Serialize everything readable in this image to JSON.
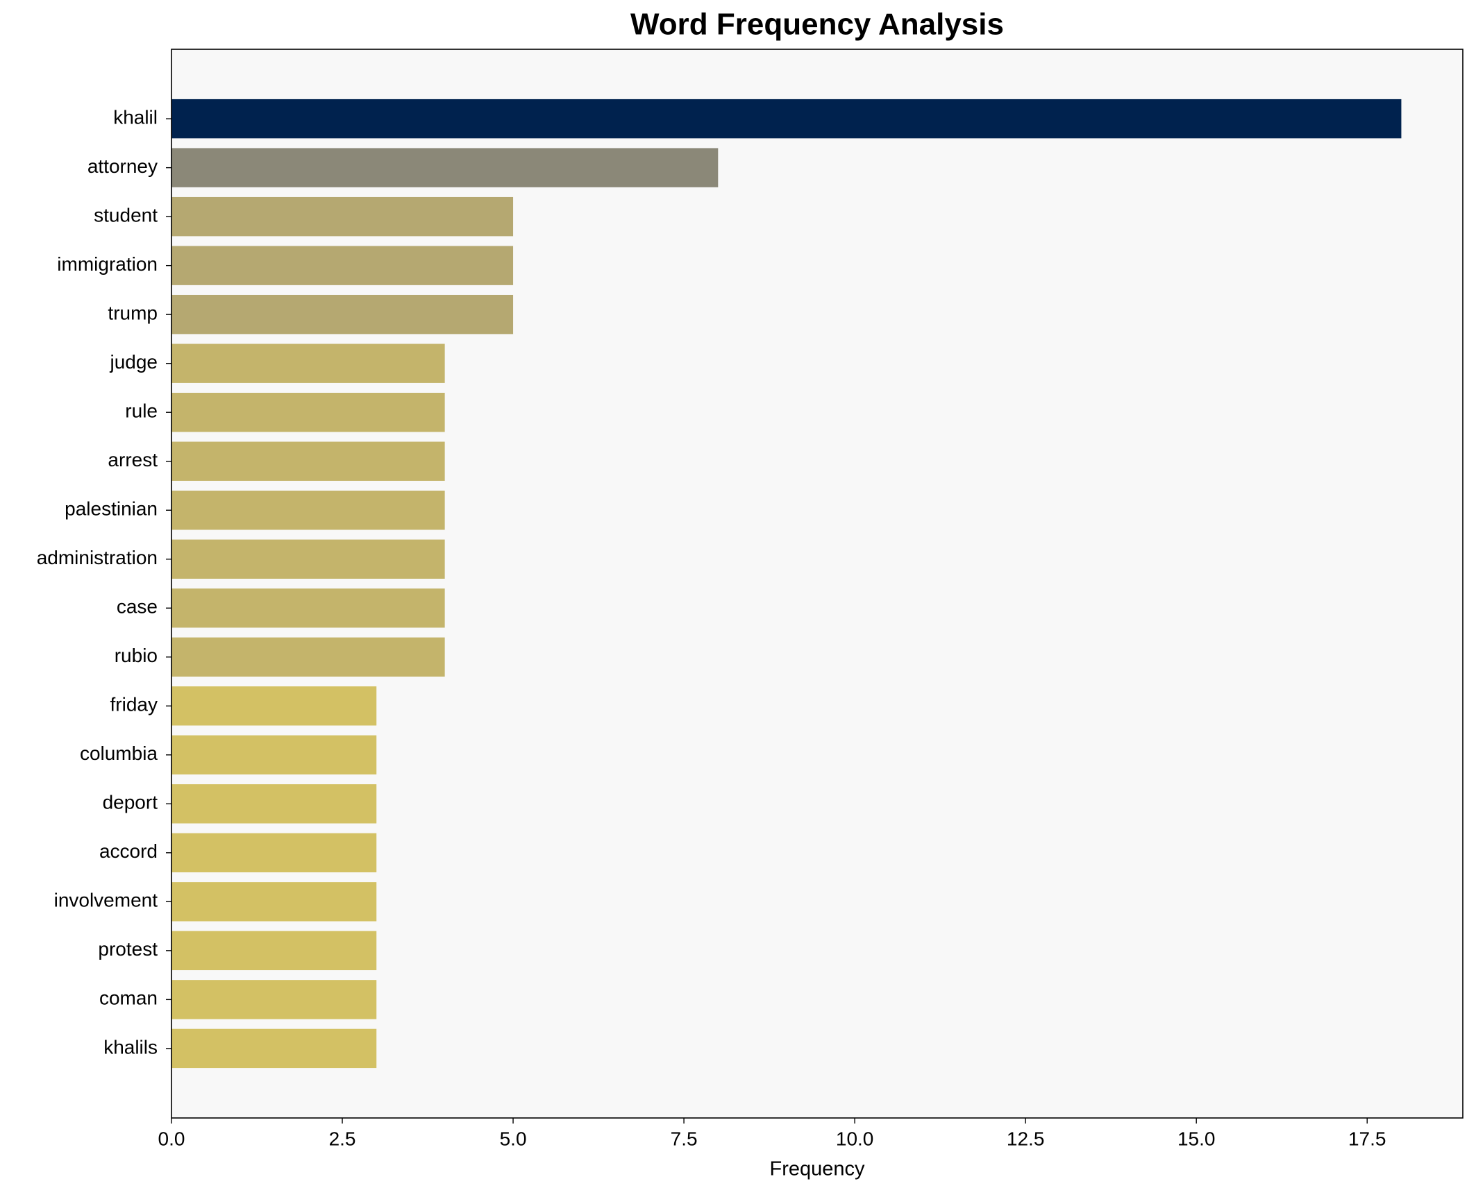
{
  "chart_data": {
    "type": "barh",
    "title": "Word Frequency Analysis",
    "x_label": "Frequency",
    "categories": [
      "khalil",
      "attorney",
      "student",
      "immigration",
      "trump",
      "judge",
      "rule",
      "arrest",
      "palestinian",
      "administration",
      "case",
      "rubio",
      "friday",
      "columbia",
      "deport",
      "accord",
      "involvement",
      "protest",
      "coman",
      "khalils"
    ],
    "values": [
      18,
      8,
      5,
      5,
      5,
      4,
      4,
      4,
      4,
      4,
      4,
      4,
      3,
      3,
      3,
      3,
      3,
      3,
      3,
      3
    ],
    "colors": [
      "#00224e",
      "#8b8878",
      "#b5a871",
      "#b5a871",
      "#b5a871",
      "#c4b46b",
      "#c4b46b",
      "#c4b46b",
      "#c4b46b",
      "#c4b46b",
      "#c4b46b",
      "#c4b46b",
      "#d3c164",
      "#d3c164",
      "#d3c164",
      "#d3c164",
      "#d3c164",
      "#d3c164",
      "#d3c164",
      "#d3c164"
    ],
    "xlim": [
      0,
      18.9
    ],
    "xticks": [
      {
        "value": 0,
        "label": "0.0"
      },
      2.5,
      {
        "value": 5,
        "label": "5.0"
      },
      7.5,
      {
        "value": 10,
        "label": "10.0"
      },
      12.5,
      {
        "value": 15,
        "label": "15.0"
      },
      17.5
    ],
    "grid": false
  }
}
